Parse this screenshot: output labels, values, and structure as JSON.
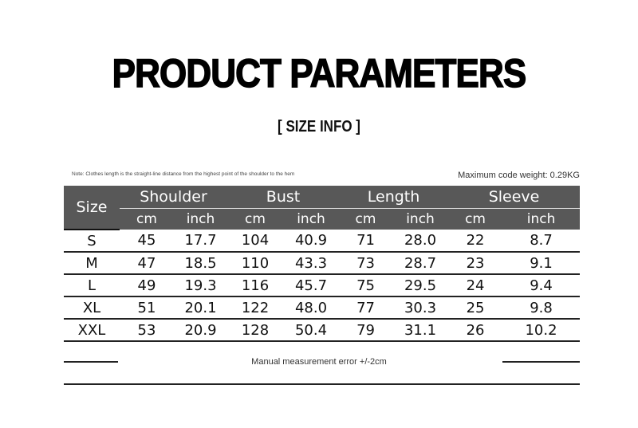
{
  "title": "PRODUCT PARAMETERS",
  "subtitle": "[ SIZE INFO ]",
  "note": "Note: Clothes length is the straight-line distance from the highest point of the shoulder to the hem",
  "weight": "Maximum code weight: 0.29KG",
  "table": {
    "size_header": "Size",
    "groups": [
      "Shoulder",
      "Bust",
      "Length",
      "Sleeve"
    ],
    "units": [
      "cm",
      "inch",
      "cm",
      "inch",
      "cm",
      "inch",
      "cm",
      "inch"
    ],
    "rows": [
      [
        "S",
        "45",
        "17.7",
        "104",
        "40.9",
        "71",
        "28.0",
        "22",
        "8.7"
      ],
      [
        "M",
        "47",
        "18.5",
        "110",
        "43.3",
        "73",
        "28.7",
        "23",
        "9.1"
      ],
      [
        "L",
        "49",
        "19.3",
        "116",
        "45.7",
        "75",
        "29.5",
        "24",
        "9.4"
      ],
      [
        "XL",
        "51",
        "20.1",
        "122",
        "48.0",
        "77",
        "30.3",
        "25",
        "9.8"
      ],
      [
        "XXL",
        "53",
        "20.9",
        "128",
        "50.4",
        "79",
        "31.1",
        "26",
        "10.2"
      ]
    ]
  },
  "footer": "Manual measurement error +/-2cm"
}
